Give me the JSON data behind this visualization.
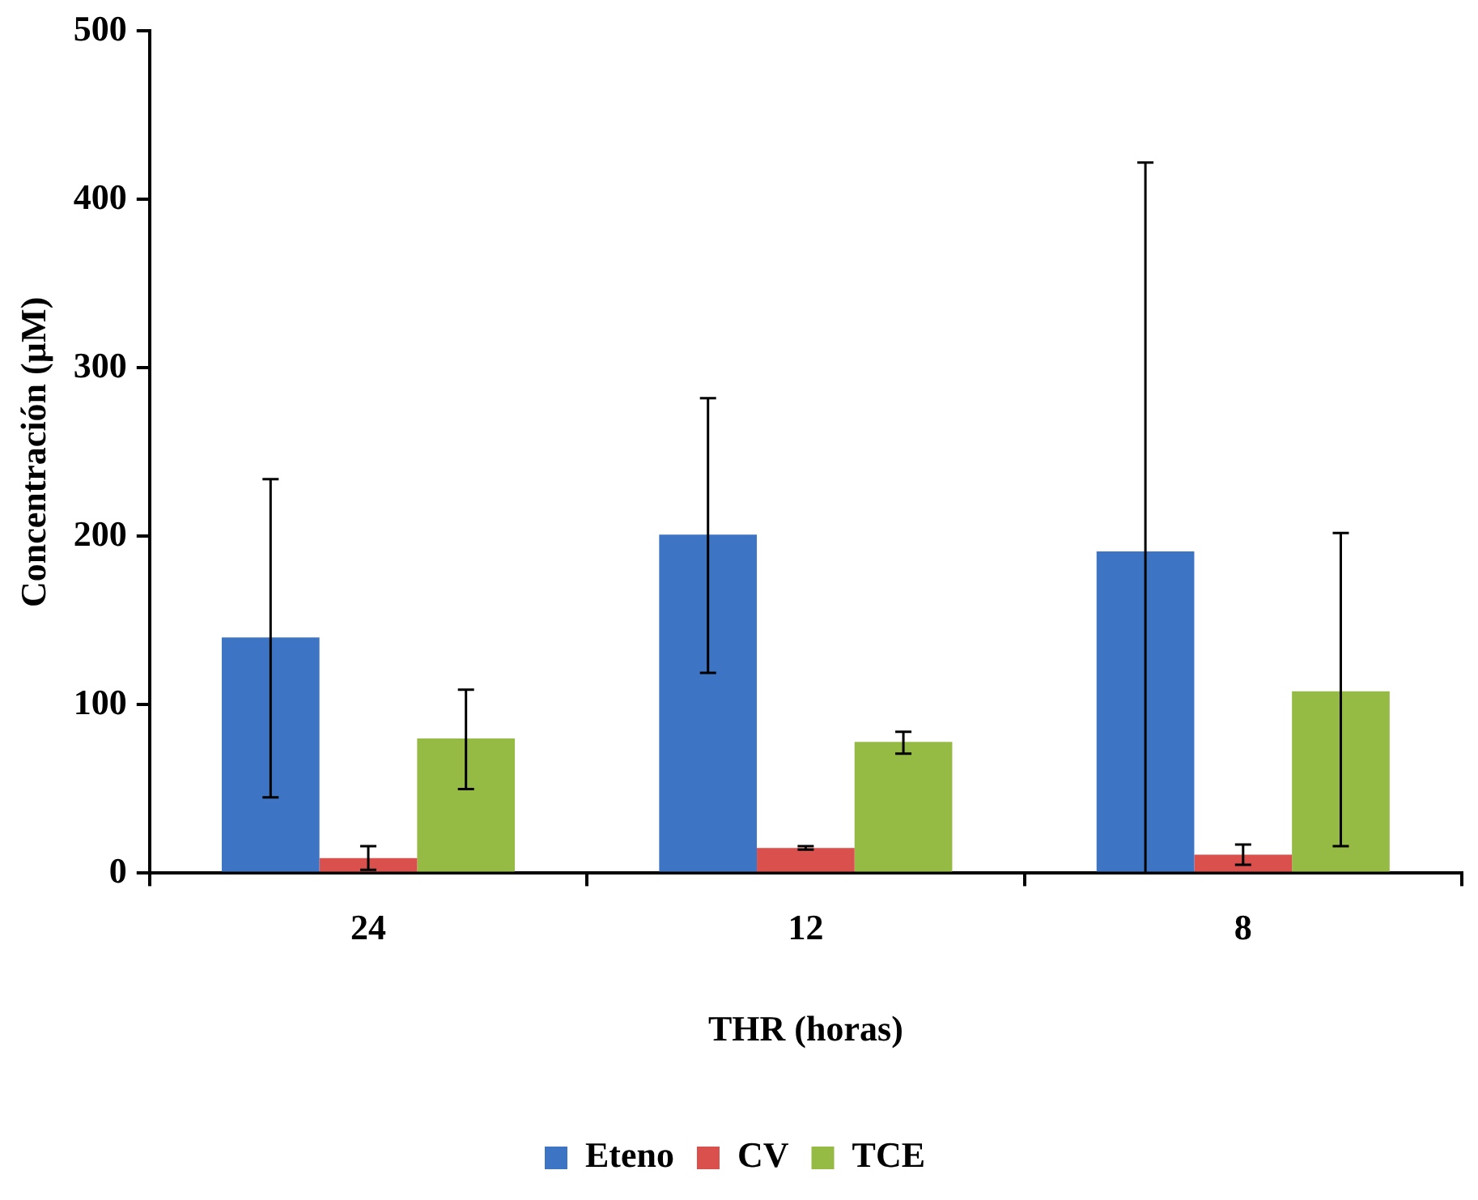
{
  "chart_data": {
    "type": "bar",
    "xlabel": "THR (horas)",
    "ylabel": "Concentración (µM)",
    "categories": [
      "24",
      "12",
      "8"
    ],
    "series": [
      {
        "name": "Eteno",
        "color": "#3d74c4",
        "values": [
          140,
          201,
          191
        ],
        "errors": [
          [
            45,
            234
          ],
          [
            119,
            282
          ],
          [
            0,
            422
          ]
        ]
      },
      {
        "name": "CV",
        "color": "#d9504c",
        "values": [
          9,
          15,
          11
        ],
        "errors": [
          [
            2,
            16
          ],
          [
            14,
            16
          ],
          [
            5,
            17
          ]
        ]
      },
      {
        "name": "TCE",
        "color": "#95bb45",
        "values": [
          80,
          78,
          108
        ],
        "errors": [
          [
            50,
            109
          ],
          [
            71,
            84
          ],
          [
            16,
            202
          ]
        ]
      }
    ],
    "ylim": [
      0,
      500
    ],
    "yticks": [
      0,
      100,
      200,
      300,
      400,
      500
    ],
    "grid": false,
    "legend": "bottom"
  }
}
